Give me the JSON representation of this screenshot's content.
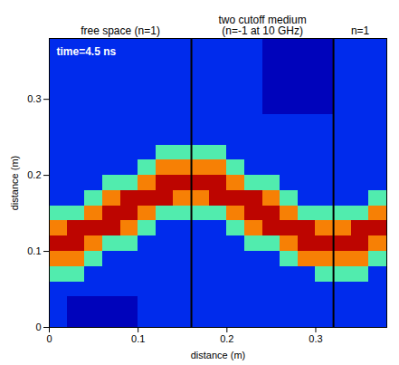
{
  "chart_data": {
    "type": "heatmap",
    "annotation": "time=4.5 ns",
    "xlabel": "distance (m)",
    "ylabel": "distance (m)",
    "xlim": [
      0,
      0.38
    ],
    "ylim": [
      0,
      0.38
    ],
    "xticks": [
      0,
      0.1,
      0.2,
      0.3
    ],
    "yticks": [
      0,
      0.1,
      0.2,
      0.3
    ],
    "boundaries": [
      0.16,
      0.32
    ],
    "regions": [
      [
        "free space (n=1)"
      ],
      [
        "two cutoff medium",
        "(n=-1 at 10 GHz)"
      ],
      [
        "n=1"
      ]
    ],
    "x": [
      0.01,
      0.03,
      0.05,
      0.07,
      0.09,
      0.11,
      0.13,
      0.15,
      0.17,
      0.19,
      0.21,
      0.23,
      0.25,
      0.27,
      0.29,
      0.31,
      0.33,
      0.35,
      0.37
    ],
    "y": [
      0.01,
      0.03,
      0.05,
      0.07,
      0.09,
      0.11,
      0.13,
      0.15,
      0.17,
      0.19,
      0.21,
      0.23,
      0.25,
      0.27,
      0.29,
      0.31,
      0.33,
      0.35,
      0.37
    ],
    "zlim": [
      0,
      1
    ],
    "z": [
      [
        0.2,
        0.08,
        0.08,
        0.08,
        0.08,
        0.2,
        0.2,
        0.2,
        0.2,
        0.2,
        0.2,
        0.2,
        0.2,
        0.2,
        0.2,
        0.2,
        0.2,
        0.2,
        0.2
      ],
      [
        0.2,
        0.08,
        0.08,
        0.08,
        0.08,
        0.2,
        0.2,
        0.2,
        0.2,
        0.2,
        0.2,
        0.2,
        0.2,
        0.2,
        0.2,
        0.2,
        0.2,
        0.2,
        0.2
      ],
      [
        0.2,
        0.2,
        0.2,
        0.2,
        0.2,
        0.2,
        0.2,
        0.2,
        0.2,
        0.2,
        0.2,
        0.2,
        0.2,
        0.2,
        0.2,
        0.2,
        0.2,
        0.2,
        0.2
      ],
      [
        0.45,
        0.45,
        0.2,
        0.2,
        0.2,
        0.2,
        0.2,
        0.2,
        0.2,
        0.2,
        0.2,
        0.2,
        0.2,
        0.2,
        0.2,
        0.45,
        0.45,
        0.45,
        0.2
      ],
      [
        0.7,
        0.7,
        0.45,
        0.2,
        0.2,
        0.2,
        0.2,
        0.2,
        0.2,
        0.2,
        0.2,
        0.2,
        0.2,
        0.45,
        0.7,
        0.7,
        0.7,
        0.7,
        0.45
      ],
      [
        0.9,
        0.9,
        0.7,
        0.45,
        0.45,
        0.2,
        0.2,
        0.2,
        0.2,
        0.2,
        0.2,
        0.45,
        0.45,
        0.7,
        0.9,
        0.9,
        0.9,
        0.9,
        0.7
      ],
      [
        0.7,
        0.9,
        0.9,
        0.9,
        0.7,
        0.45,
        0.2,
        0.2,
        0.2,
        0.2,
        0.45,
        0.7,
        0.9,
        0.9,
        0.9,
        0.7,
        0.7,
        0.9,
        0.9
      ],
      [
        0.45,
        0.45,
        0.7,
        0.9,
        0.9,
        0.7,
        0.45,
        0.45,
        0.45,
        0.45,
        0.7,
        0.9,
        0.9,
        0.7,
        0.45,
        0.45,
        0.45,
        0.45,
        0.7
      ],
      [
        0.2,
        0.2,
        0.45,
        0.7,
        0.9,
        0.9,
        0.9,
        0.7,
        0.7,
        0.9,
        0.9,
        0.9,
        0.7,
        0.45,
        0.2,
        0.2,
        0.2,
        0.2,
        0.45
      ],
      [
        0.2,
        0.2,
        0.2,
        0.45,
        0.45,
        0.7,
        0.9,
        0.9,
        0.9,
        0.9,
        0.7,
        0.45,
        0.45,
        0.2,
        0.2,
        0.2,
        0.2,
        0.2,
        0.2
      ],
      [
        0.2,
        0.2,
        0.2,
        0.2,
        0.2,
        0.45,
        0.7,
        0.7,
        0.7,
        0.7,
        0.45,
        0.2,
        0.2,
        0.2,
        0.2,
        0.2,
        0.2,
        0.2,
        0.2
      ],
      [
        0.2,
        0.2,
        0.2,
        0.2,
        0.2,
        0.2,
        0.45,
        0.45,
        0.45,
        0.45,
        0.2,
        0.2,
        0.2,
        0.2,
        0.2,
        0.2,
        0.2,
        0.2,
        0.2
      ],
      [
        0.2,
        0.2,
        0.2,
        0.2,
        0.2,
        0.2,
        0.2,
        0.2,
        0.2,
        0.2,
        0.2,
        0.2,
        0.2,
        0.2,
        0.2,
        0.2,
        0.2,
        0.2,
        0.2
      ],
      [
        0.2,
        0.2,
        0.2,
        0.2,
        0.2,
        0.2,
        0.2,
        0.2,
        0.2,
        0.2,
        0.2,
        0.2,
        0.2,
        0.2,
        0.2,
        0.2,
        0.2,
        0.2,
        0.2
      ],
      [
        0.2,
        0.2,
        0.2,
        0.2,
        0.2,
        0.2,
        0.2,
        0.2,
        0.2,
        0.2,
        0.2,
        0.2,
        0.08,
        0.08,
        0.08,
        0.08,
        0.2,
        0.2,
        0.2
      ],
      [
        0.2,
        0.2,
        0.2,
        0.2,
        0.2,
        0.2,
        0.2,
        0.2,
        0.2,
        0.2,
        0.2,
        0.2,
        0.08,
        0.08,
        0.08,
        0.08,
        0.2,
        0.2,
        0.2
      ],
      [
        0.2,
        0.2,
        0.2,
        0.2,
        0.2,
        0.2,
        0.2,
        0.2,
        0.2,
        0.2,
        0.2,
        0.2,
        0.08,
        0.08,
        0.08,
        0.08,
        0.2,
        0.2,
        0.2
      ],
      [
        0.2,
        0.2,
        0.2,
        0.2,
        0.2,
        0.2,
        0.2,
        0.2,
        0.2,
        0.2,
        0.2,
        0.2,
        0.08,
        0.08,
        0.08,
        0.08,
        0.2,
        0.2,
        0.2
      ],
      [
        0.2,
        0.2,
        0.2,
        0.2,
        0.2,
        0.2,
        0.2,
        0.2,
        0.2,
        0.2,
        0.2,
        0.2,
        0.08,
        0.08,
        0.08,
        0.08,
        0.2,
        0.2,
        0.2
      ]
    ]
  }
}
